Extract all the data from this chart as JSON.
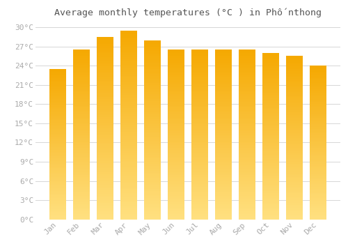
{
  "title": "Average monthly temperatures (°C ) in Phốnthong",
  "months": [
    "Jan",
    "Feb",
    "Mar",
    "Apr",
    "May",
    "Jun",
    "Jul",
    "Aug",
    "Sep",
    "Oct",
    "Nov",
    "Dec"
  ],
  "temperatures": [
    23.5,
    26.5,
    28.5,
    29.5,
    28.0,
    26.5,
    26.5,
    26.5,
    26.5,
    26.0,
    25.5,
    24.0
  ],
  "bar_color_top": "#F5A800",
  "bar_color_bottom": "#FFE080",
  "ylim": [
    0,
    31
  ],
  "yticks": [
    0,
    3,
    6,
    9,
    12,
    15,
    18,
    21,
    24,
    27,
    30
  ],
  "background_color": "#FFFFFF",
  "grid_color": "#CCCCCC",
  "title_fontsize": 9.5,
  "tick_fontsize": 8,
  "font_color": "#AAAAAA",
  "title_color": "#555555"
}
